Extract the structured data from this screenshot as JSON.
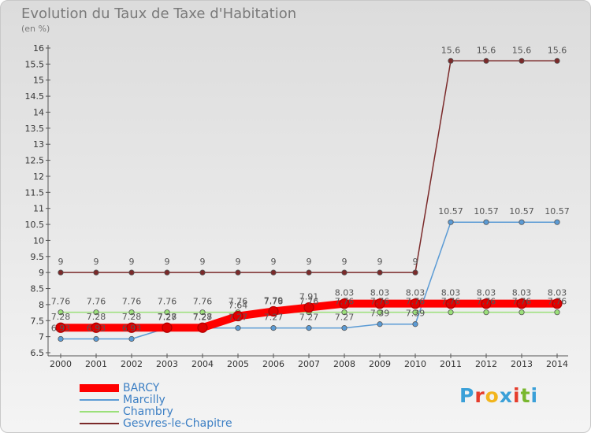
{
  "header": {
    "title": "Evolution du Taux de Taxe d'Habitation",
    "unit": "(en %)"
  },
  "brand": {
    "letters": [
      "P",
      "r",
      "o",
      "x",
      "i",
      "t",
      "i"
    ],
    "colors": [
      "#3aa0d8",
      "#e53c2b",
      "#f2b51d",
      "#3aa0d8",
      "#e53c2b",
      "#79b72e",
      "#3aa0d8"
    ]
  },
  "chart_data": {
    "type": "line",
    "x": [
      "2000",
      "2001",
      "2002",
      "2003",
      "2004",
      "2005",
      "2006",
      "2007",
      "2008",
      "2009",
      "2010",
      "2011",
      "2012",
      "2013",
      "2014"
    ],
    "ylim": [
      6.5,
      16
    ],
    "y_ticks": [
      "6.5",
      "7",
      "7.5",
      "8",
      "8.5",
      "9",
      "9.5",
      "10",
      "10.5",
      "11",
      "11.5",
      "12",
      "12.5",
      "13",
      "13.5",
      "14",
      "14.5",
      "15",
      "15.5",
      "16"
    ],
    "grid": false,
    "legend_position": "bottom-left",
    "series": [
      {
        "name": "Gesvres-le-Chapitre",
        "color": "#7b2a2a",
        "width": 1.5,
        "values": [
          9,
          9,
          9,
          9,
          9,
          9,
          9,
          9,
          9,
          9,
          9,
          15.6,
          15.6,
          15.6,
          15.6
        ],
        "labels": [
          "9",
          "9",
          "9",
          "9",
          "9",
          "9",
          "9",
          "9",
          "9",
          "9",
          "9",
          "15.6",
          "15.6",
          "15.6",
          "15.6"
        ]
      },
      {
        "name": "Marcilly",
        "color": "#5b9bd5",
        "width": 1.5,
        "values": [
          6.93,
          6.93,
          6.93,
          7.27,
          7.27,
          7.27,
          7.27,
          7.27,
          7.27,
          7.39,
          7.39,
          10.57,
          10.57,
          10.57,
          10.57
        ],
        "labels": [
          "6.93",
          "6.93",
          "6.93",
          "7.27",
          "7.27",
          "7.27",
          "7.27",
          "7.27",
          "7.27",
          "7.39",
          "7.39",
          "10.57",
          "10.57",
          "10.57",
          "10.57"
        ]
      },
      {
        "name": "Chambry",
        "color": "#9be07a",
        "width": 1.5,
        "values": [
          7.76,
          7.76,
          7.76,
          7.76,
          7.76,
          7.76,
          7.76,
          7.76,
          7.76,
          7.76,
          7.76,
          7.76,
          7.76,
          7.76,
          7.76
        ],
        "labels": [
          "7.76",
          "7.76",
          "7.76",
          "7.76",
          "7.76",
          "7.76",
          "7.76",
          "7.76",
          "7.76",
          "7.76",
          "7.76",
          "7.76",
          "7.76",
          "7.76",
          "7.76"
        ]
      },
      {
        "name": "BARCY",
        "color": "#ff0000",
        "width": 10,
        "values": [
          7.28,
          7.28,
          7.28,
          7.28,
          7.28,
          7.64,
          7.79,
          7.91,
          8.03,
          8.03,
          8.03,
          8.03,
          8.03,
          8.03,
          8.03
        ],
        "labels": [
          "7.28",
          "7.28",
          "7.28",
          "7.28",
          "7.28",
          "7.64",
          "7.79",
          "7.91",
          "8.03",
          "8.03",
          "8.03",
          "8.03",
          "8.03",
          "8.03",
          "8.03"
        ]
      }
    ]
  }
}
